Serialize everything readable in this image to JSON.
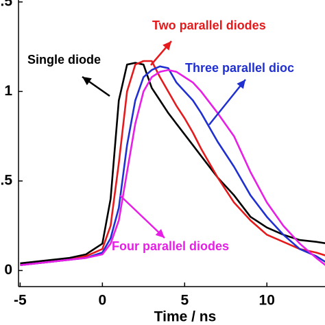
{
  "chart_data": {
    "type": "line",
    "x_label": "Time / ns",
    "x": [
      -5,
      -4,
      -3,
      -2,
      -1,
      0,
      0.5,
      1,
      1.5,
      2,
      2.5,
      3,
      3.5,
      4,
      4.5,
      5,
      5.5,
      6,
      7,
      8,
      9,
      10,
      11,
      12,
      13,
      13.7
    ],
    "series": [
      {
        "color": "#000000",
        "values": [
          0.04,
          0.05,
          0.06,
          0.07,
          0.09,
          0.15,
          0.4,
          0.95,
          1.15,
          1.16,
          1.15,
          1.02,
          0.95,
          0.88,
          0.82,
          0.76,
          0.7,
          0.64,
          0.52,
          0.42,
          0.3,
          0.24,
          0.2,
          0.17,
          0.16,
          0.15
        ]
      },
      {
        "color": "#e41a1c",
        "values": [
          0.03,
          0.04,
          0.05,
          0.06,
          0.08,
          0.12,
          0.25,
          0.6,
          1.0,
          1.15,
          1.17,
          1.17,
          1.08,
          1.0,
          0.92,
          0.85,
          0.77,
          0.68,
          0.52,
          0.38,
          0.28,
          0.2,
          0.16,
          0.12,
          0.1,
          0.08
        ]
      },
      {
        "color": "#1f2fd0",
        "values": [
          0.03,
          0.04,
          0.05,
          0.06,
          0.07,
          0.1,
          0.18,
          0.35,
          0.7,
          0.95,
          1.08,
          1.12,
          1.14,
          1.13,
          1.05,
          1.0,
          0.95,
          0.88,
          0.72,
          0.58,
          0.42,
          0.3,
          0.2,
          0.12,
          0.08,
          0.04
        ]
      },
      {
        "color": "#e61ee6",
        "values": [
          0.03,
          0.04,
          0.05,
          0.06,
          0.07,
          0.09,
          0.15,
          0.28,
          0.55,
          0.82,
          1.0,
          1.08,
          1.11,
          1.12,
          1.11,
          1.08,
          1.05,
          1.0,
          0.88,
          0.75,
          0.55,
          0.38,
          0.25,
          0.15,
          0.07,
          0.02
        ]
      }
    ],
    "annotations": [
      {
        "text": "Single diode",
        "color": "#000000"
      },
      {
        "text": "Two parallel diodes",
        "color": "#e41a1c"
      },
      {
        "text": "Three parallel dioc",
        "color": "#1f2fd0"
      },
      {
        "text": "Four parallel diodes",
        "color": "#e61ee6"
      }
    ],
    "xlim": [
      -5.1,
      13.7
    ],
    "xticks": [
      -5,
      0,
      5,
      10
    ],
    "ylim": [
      -0.09,
      1.53
    ],
    "yticks": [
      0,
      {
        "value": 0.5,
        "label": ".5"
      },
      1,
      {
        "value": 1.5,
        "label": ".5"
      }
    ]
  }
}
